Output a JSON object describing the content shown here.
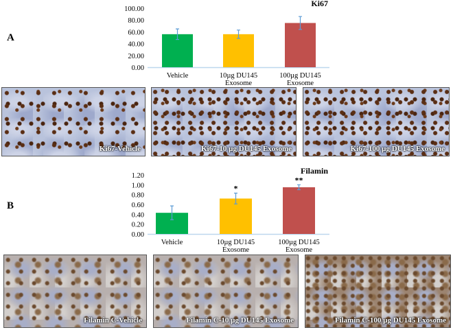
{
  "panels": {
    "a": "A",
    "b": "B"
  },
  "chart_data": [
    {
      "type": "bar",
      "title": "Ki67",
      "categories": [
        "Vehicle",
        "10µg DU145|Exosome",
        "100µg DU145|Exosome"
      ],
      "values": [
        56,
        56,
        75
      ],
      "errors": [
        9,
        7,
        11
      ],
      "significance": [
        "",
        "",
        ""
      ],
      "colors": [
        "#00b050",
        "#ffc000",
        "#c0504d"
      ],
      "ylim": [
        0,
        100
      ],
      "yticks": [
        0,
        20,
        40,
        60,
        80,
        100
      ],
      "ytick_labels": [
        "0.00",
        "20.00",
        "40.00",
        "60.00",
        "80.00",
        "100.00"
      ],
      "xlabel": "",
      "ylabel": ""
    },
    {
      "type": "bar",
      "title": "Filamin",
      "categories": [
        "Vehicle",
        "10µg DU145|Exosome",
        "100µg DU145|Exosome"
      ],
      "values": [
        0.43,
        0.72,
        0.95
      ],
      "errors": [
        0.14,
        0.11,
        0.05
      ],
      "significance": [
        "",
        "*",
        "**"
      ],
      "colors": [
        "#00b050",
        "#ffc000",
        "#c0504d"
      ],
      "ylim": [
        0,
        1.2
      ],
      "yticks": [
        0,
        0.2,
        0.4,
        0.6,
        0.8,
        1.0,
        1.2
      ],
      "ytick_labels": [
        "0.00",
        "0.20",
        "0.40",
        "0.60",
        "0.80",
        "1.00",
        "1.20"
      ],
      "xlabel": "",
      "ylabel": ""
    }
  ],
  "images": {
    "row1": [
      "Ki67-Vehicle",
      "Ki67-10 µg DU145 Exosome",
      "Ki67-100 µg DU145 Exosome"
    ],
    "row2": [
      "Filamin C-Vehicle",
      "Filamin C-10 µg DU145 Exosome",
      "Filamin C-100 µg DU145 Exosome"
    ]
  }
}
